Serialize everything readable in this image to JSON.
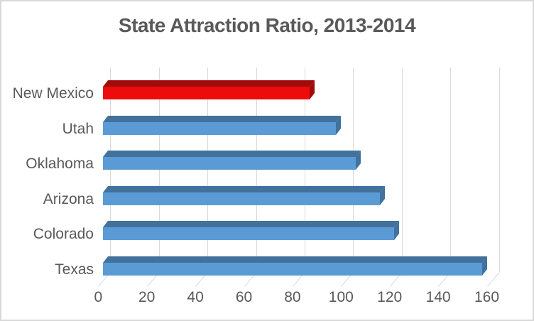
{
  "chart_data": {
    "type": "bar",
    "orientation": "horizontal",
    "style": "3d-bevel",
    "title": "State Attraction Ratio, 2013-2014",
    "categories": [
      "New Mexico",
      "Utah",
      "Oklahoma",
      "Arizona",
      "Colorado",
      "Texas"
    ],
    "values": [
      85,
      96,
      104,
      114,
      120,
      156
    ],
    "highlighted_index": 0,
    "xlabel": "",
    "ylabel": "",
    "xlim": [
      0,
      160
    ],
    "xticks": [
      0,
      20,
      40,
      60,
      80,
      100,
      120,
      140,
      160
    ],
    "grid": true,
    "legend": false,
    "colors": {
      "bar": "#5b9bd5",
      "bar_shade": "#41719c",
      "highlight": "#ee0b0b",
      "highlight_shade": "#a00b0b",
      "gridline": "#d9d9d9",
      "text": "#595959",
      "background": "#ffffff",
      "border": "#d9d9d9"
    }
  }
}
